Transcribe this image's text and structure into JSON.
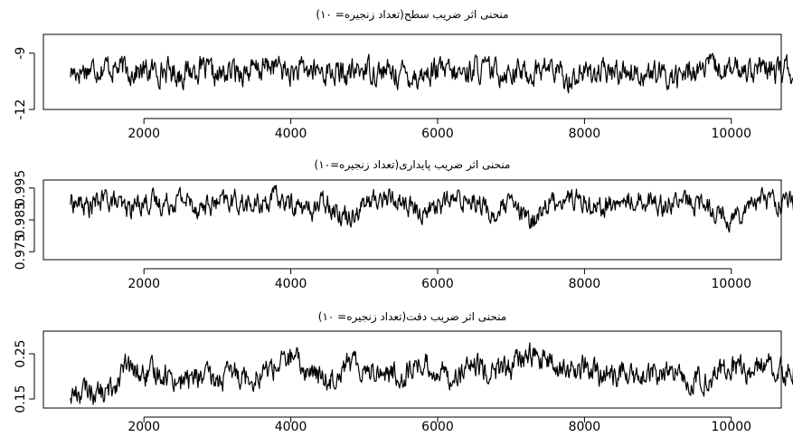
{
  "chart_data": [
    {
      "type": "line",
      "title": "منحنی اثر ضریب سطح(تعداد زنجیره= ۱۰)",
      "xlabel": "",
      "ylabel": "",
      "xlim": [
        1000,
        11000
      ],
      "ylim": [
        -12,
        -8
      ],
      "x_ticks": [
        2000,
        4000,
        6000,
        8000,
        10000
      ],
      "x_tick_labels": [
        "2000",
        "4000",
        "6000",
        "8000",
        "10000"
      ],
      "y_ticks": [
        -12,
        -9
      ],
      "y_tick_labels": [
        "-12",
        "-9"
      ],
      "grid": false,
      "series": [
        {
          "x": [
            1000,
            1250,
            1500,
            1750,
            2000,
            2250,
            2500,
            2750,
            3000,
            3250,
            3500,
            3750,
            4000,
            4250,
            4500,
            4750,
            5000,
            5250,
            5500,
            5750,
            6000,
            6250,
            6500,
            6750,
            7000,
            7250,
            7500,
            7750,
            8000,
            8250,
            8500,
            8750,
            9000,
            9250,
            9500,
            9750,
            10000,
            10250,
            10500,
            10750,
            11000
          ],
          "values": [
            -10.0,
            -9.8,
            -9.7,
            -9.9,
            -10.0,
            -9.9,
            -10.1,
            -9.8,
            -10.3,
            -9.9,
            -10.0,
            -9.6,
            -10.1,
            -9.9,
            -10.0,
            -10.2,
            -9.8,
            -10.0,
            -10.1,
            -10.2,
            -9.9,
            -10.2,
            -9.8,
            -10.0,
            -9.9,
            -10.1,
            -9.7,
            -10.4,
            -10.0,
            -10.1,
            -9.9,
            -10.0,
            -10.2,
            -10.3,
            -9.9,
            -9.8,
            -10.0,
            -9.7,
            -10.0,
            -9.9,
            -10.4
          ]
        }
      ]
    },
    {
      "type": "line",
      "title": "منحنی اثر ضریب پایداری(تعداد زنجیره=۱۰)",
      "xlabel": "",
      "ylabel": "",
      "xlim": [
        1000,
        11000
      ],
      "ylim": [
        0.9725,
        0.9975
      ],
      "x_ticks": [
        2000,
        4000,
        6000,
        8000,
        10000
      ],
      "x_tick_labels": [
        "2000",
        "4000",
        "6000",
        "8000",
        "10000"
      ],
      "y_ticks": [
        0.975,
        0.985,
        0.995
      ],
      "y_tick_labels": [
        "0.975",
        "0.985",
        "0.995"
      ],
      "grid": false,
      "series": [
        {
          "x": [
            1000,
            1250,
            1500,
            1750,
            2000,
            2250,
            2500,
            2750,
            3000,
            3250,
            3500,
            3750,
            4000,
            4250,
            4500,
            4750,
            5000,
            5250,
            5500,
            5750,
            6000,
            6250,
            6500,
            6750,
            7000,
            7250,
            7500,
            7750,
            8000,
            8250,
            8500,
            8750,
            9000,
            9250,
            9500,
            9750,
            10000,
            10250,
            10500,
            10750,
            11000
          ],
          "values": [
            0.991,
            0.989,
            0.992,
            0.988,
            0.991,
            0.99,
            0.992,
            0.989,
            0.99,
            0.991,
            0.989,
            0.992,
            0.99,
            0.988,
            0.991,
            0.986,
            0.99,
            0.992,
            0.991,
            0.987,
            0.99,
            0.991,
            0.992,
            0.986,
            0.99,
            0.984,
            0.99,
            0.992,
            0.991,
            0.989,
            0.99,
            0.992,
            0.99,
            0.991,
            0.99,
            0.989,
            0.985,
            0.991,
            0.992,
            0.99,
            0.991
          ]
        }
      ]
    },
    {
      "type": "line",
      "title": "منحنی اثر ضریب دقت(تعداد زنجیره= ۱۰)",
      "xlabel": "",
      "ylabel": "",
      "xlim": [
        1000,
        11000
      ],
      "ylim": [
        0.13,
        0.3
      ],
      "x_ticks": [
        2000,
        4000,
        6000,
        8000,
        10000
      ],
      "x_tick_labels": [
        "2000",
        "4000",
        "6000",
        "8000",
        "10000"
      ],
      "y_ticks": [
        0.15,
        0.25
      ],
      "y_tick_labels": [
        "0.15",
        "0.25"
      ],
      "grid": false,
      "series": [
        {
          "x": [
            1000,
            1250,
            1500,
            1750,
            2000,
            2250,
            2500,
            2750,
            3000,
            3250,
            3500,
            3750,
            4000,
            4250,
            4500,
            4750,
            5000,
            5250,
            5500,
            5750,
            6000,
            6250,
            6500,
            6750,
            7000,
            7250,
            7500,
            7750,
            8000,
            8250,
            8500,
            8750,
            9000,
            9250,
            9500,
            9750,
            10000,
            10250,
            10500,
            10750,
            11000
          ],
          "values": [
            0.16,
            0.17,
            0.16,
            0.22,
            0.2,
            0.21,
            0.19,
            0.2,
            0.19,
            0.21,
            0.2,
            0.22,
            0.24,
            0.21,
            0.19,
            0.23,
            0.22,
            0.21,
            0.2,
            0.23,
            0.21,
            0.2,
            0.22,
            0.21,
            0.22,
            0.25,
            0.23,
            0.21,
            0.22,
            0.2,
            0.21,
            0.19,
            0.21,
            0.2,
            0.19,
            0.2,
            0.22,
            0.21,
            0.23,
            0.21,
            0.24
          ]
        }
      ]
    }
  ]
}
